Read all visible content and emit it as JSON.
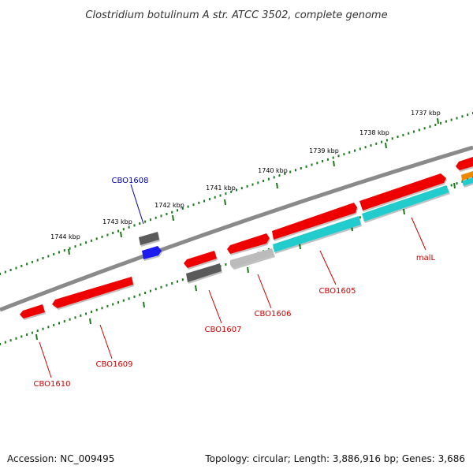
{
  "title": "Clostridium botulinum A str. ATCC 3502, complete genome",
  "footer": {
    "accession": "Accession: NC_009495",
    "topology": "Topology: circular; Length: 3,886,916 bp; Genes: 3,686"
  },
  "colors": {
    "background": "#ffffff",
    "backbone": "#888888",
    "dots": "#1a7a1a",
    "gene_label_red": "#cc0000",
    "gene_label_blue": "#0000aa",
    "cds_red": "#ee0000",
    "cds_cyan": "#22cccc",
    "cds_gray": "#666666",
    "cds_lightgray": "#bbbbbb",
    "cds_blue": "#1a1aee",
    "cds_orange": "#ee8800"
  },
  "ticks": [
    "1737 kbp",
    "1738 kbp",
    "1739 kbp",
    "1740 kbp",
    "1741 kbp",
    "1742 kbp",
    "1743 kbp",
    "1744 kbp"
  ],
  "genes": [
    {
      "name": "CBO1605",
      "color": "red"
    },
    {
      "name": "CBO1606",
      "color": "red"
    },
    {
      "name": "CBO1607",
      "color": "red"
    },
    {
      "name": "CBO1608",
      "color": "blue"
    },
    {
      "name": "CBO1609",
      "color": "red"
    },
    {
      "name": "CBO1610",
      "color": "red"
    },
    {
      "name": "malL",
      "color": "red"
    }
  ]
}
